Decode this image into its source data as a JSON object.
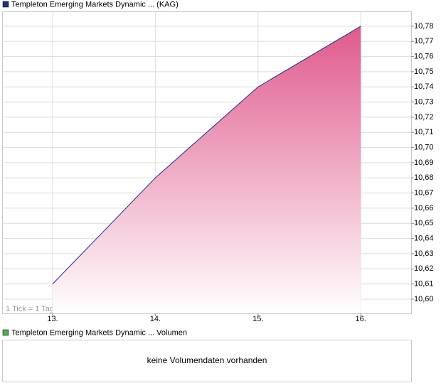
{
  "chart_data": {
    "type": "area",
    "categories": [
      "13.",
      "14.",
      "15.",
      "16."
    ],
    "series": [
      {
        "name": "Templeton Emerging Markets Dynamic ... (KAG)",
        "color": "#1a2f8f",
        "fill_color": "#e05a8c",
        "values": [
          10.61,
          10.68,
          10.74,
          10.78
        ]
      }
    ],
    "ylim": [
      10.5906,
      10.7898
    ],
    "yticks": [
      {
        "value": 10.6,
        "label": "10,60"
      },
      {
        "value": 10.61,
        "label": "10,61"
      },
      {
        "value": 10.62,
        "label": "10,62"
      },
      {
        "value": 10.63,
        "label": "10,63"
      },
      {
        "value": 10.64,
        "label": "10,64"
      },
      {
        "value": 10.65,
        "label": "10,65"
      },
      {
        "value": 10.66,
        "label": "10,66"
      },
      {
        "value": 10.67,
        "label": "10,67"
      },
      {
        "value": 10.68,
        "label": "10,68"
      },
      {
        "value": 10.69,
        "label": "10,69"
      },
      {
        "value": 10.7,
        "label": "10,70"
      },
      {
        "value": 10.71,
        "label": "10,71"
      },
      {
        "value": 10.72,
        "label": "10,72"
      },
      {
        "value": 10.73,
        "label": "10,73"
      },
      {
        "value": 10.74,
        "label": "10,74"
      },
      {
        "value": 10.75,
        "label": "10,75"
      },
      {
        "value": 10.76,
        "label": "10,76"
      },
      {
        "value": 10.77,
        "label": "10,77"
      },
      {
        "value": 10.78,
        "label": "10,78"
      }
    ],
    "grid": true,
    "note": "1 Tick = 1 Tag"
  },
  "volume_panel": {
    "legend": "Templeton Emerging Markets Dynamic ... Volumen",
    "legend_color": "#4caf50",
    "message": "keine Volumendaten vorhanden"
  }
}
